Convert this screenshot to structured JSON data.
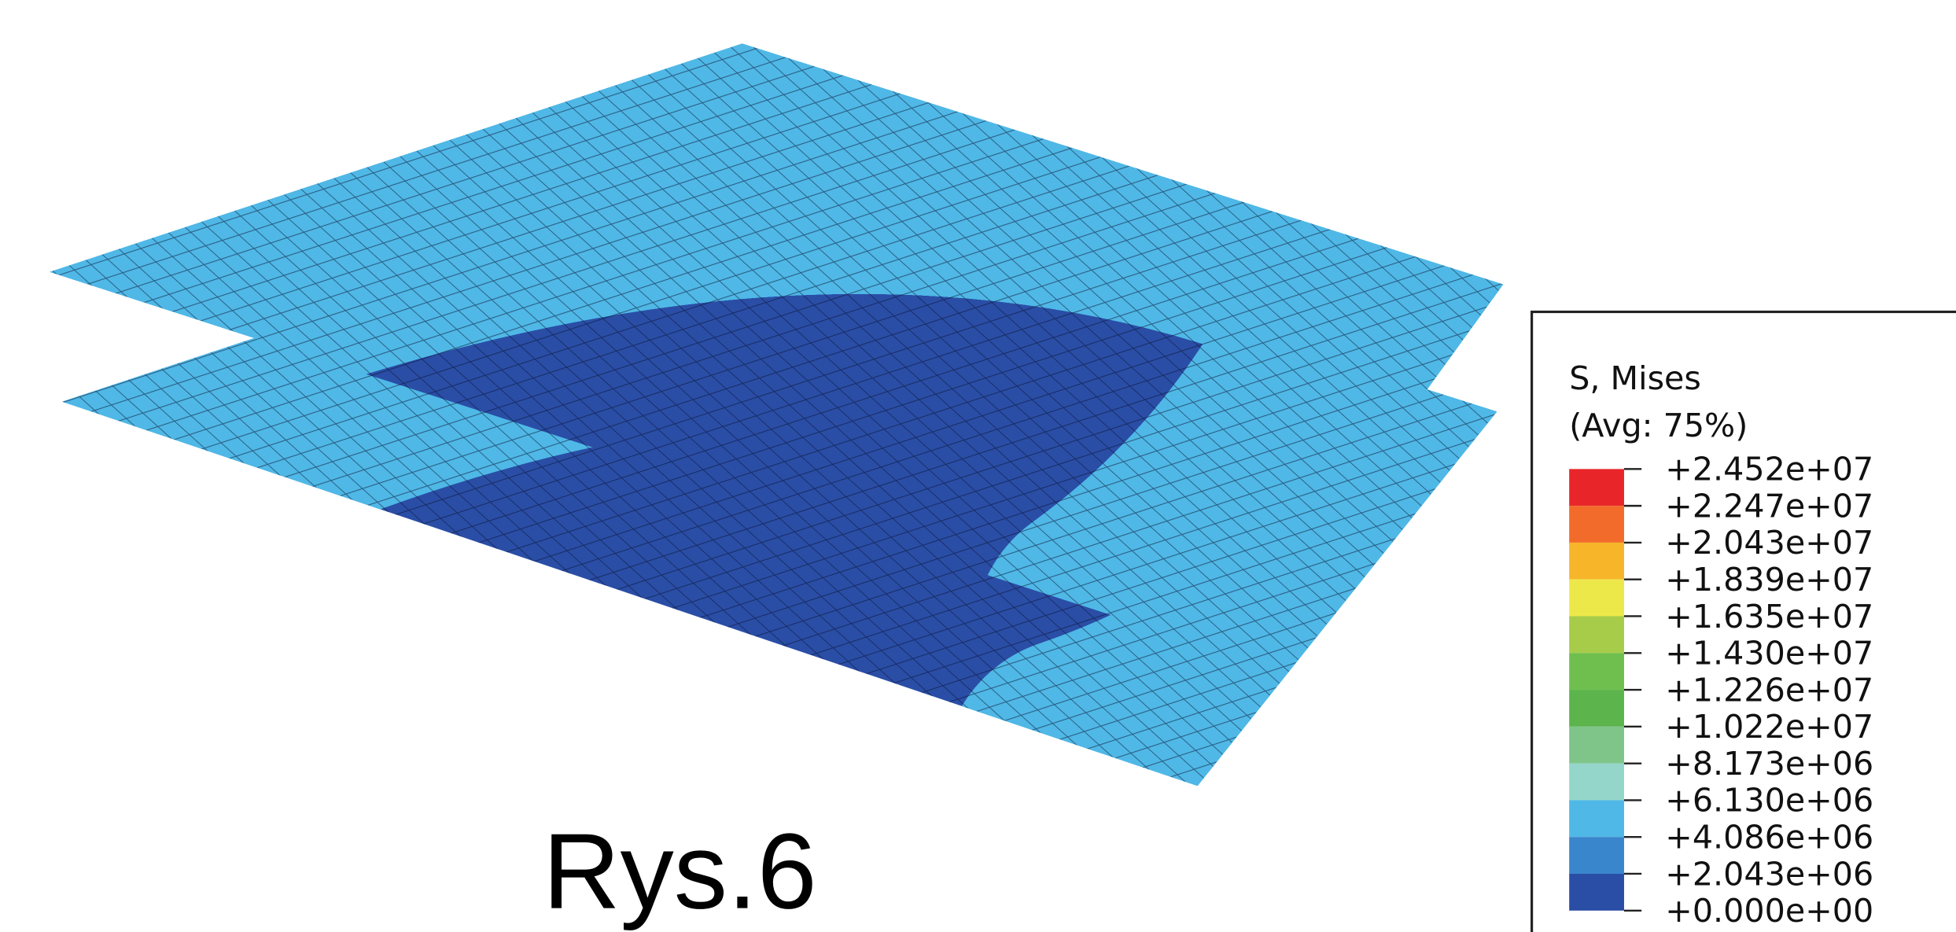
{
  "caption": "Rys.6",
  "legend": {
    "title": "S, Mises",
    "subtitle": "(Avg: 75%)",
    "labels": [
      "+2.452e+07",
      "+2.247e+07",
      "+2.043e+07",
      "+1.839e+07",
      "+1.635e+07",
      "+1.430e+07",
      "+1.226e+07",
      "+1.022e+07",
      "+8.173e+06",
      "+6.130e+06",
      "+4.086e+06",
      "+2.043e+06",
      "+0.000e+00"
    ],
    "colors": [
      "#e8262a",
      "#f26b2a",
      "#f7b52a",
      "#ede84a",
      "#a6cc4a",
      "#6fbf4e",
      "#5cb44c",
      "#7fc58a",
      "#94d6ca",
      "#4fb8e6",
      "#3a86cc",
      "#2a4ea6"
    ]
  }
}
